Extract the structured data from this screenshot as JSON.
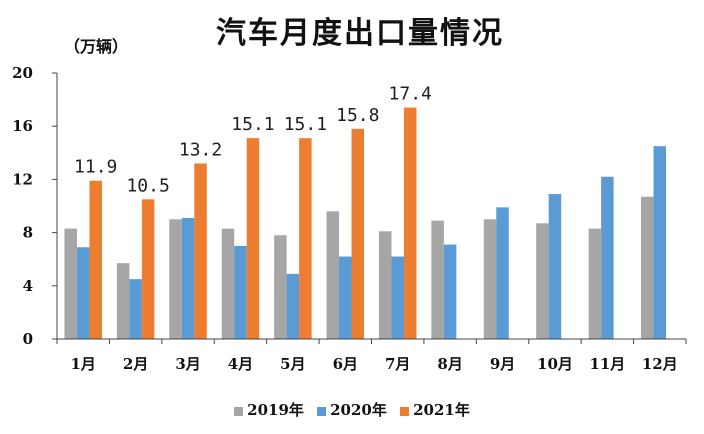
{
  "chart_data": {
    "type": "bar",
    "title": "汽车月度出口量情况",
    "unit_label": "（万辆）",
    "categories": [
      "1月",
      "2月",
      "3月",
      "4月",
      "5月",
      "6月",
      "7月",
      "8月",
      "9月",
      "10月",
      "11月",
      "12月"
    ],
    "ylim": [
      0,
      20
    ],
    "yticks": [
      0,
      4,
      8,
      12,
      16,
      20
    ],
    "grid": false,
    "legend_position": "bottom",
    "series": [
      {
        "name": "2019年",
        "color": "#a6a6a6",
        "values": [
          8.3,
          5.7,
          9.0,
          8.3,
          7.8,
          9.6,
          8.1,
          8.9,
          9.0,
          8.7,
          8.3,
          10.7
        ]
      },
      {
        "name": "2020年",
        "color": "#5b9bd5",
        "values": [
          6.9,
          4.5,
          9.1,
          7.0,
          4.9,
          6.2,
          6.2,
          7.1,
          9.9,
          10.9,
          12.2,
          14.5
        ]
      },
      {
        "name": "2021年",
        "color": "#ed7d31",
        "values": [
          11.9,
          10.5,
          13.2,
          15.1,
          15.1,
          15.8,
          17.4,
          null,
          null,
          null,
          null,
          null
        ],
        "data_labels": [
          "11.9",
          "10.5",
          "13.2",
          "15.1",
          "15.1",
          "15.8",
          "17.4"
        ]
      }
    ]
  }
}
